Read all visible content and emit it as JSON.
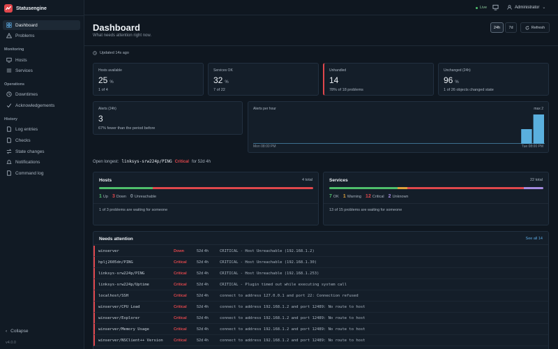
{
  "app": {
    "name": "Statusengine",
    "version": "v4.0.0"
  },
  "sidebar": {
    "top_items": [
      {
        "label": "Dashboard",
        "icon": "grid-icon",
        "active": true
      },
      {
        "label": "Problems",
        "icon": "warning-icon",
        "active": false
      }
    ],
    "sections": [
      {
        "title": "Monitoring",
        "items": [
          {
            "label": "Hosts",
            "icon": "monitor-icon"
          },
          {
            "label": "Services",
            "icon": "list-icon"
          }
        ]
      },
      {
        "title": "Operations",
        "items": [
          {
            "label": "Downtimes",
            "icon": "clock-icon"
          },
          {
            "label": "Acknowledgements",
            "icon": "check-icon"
          }
        ]
      },
      {
        "title": "History",
        "items": [
          {
            "label": "Log entries",
            "icon": "document-icon"
          },
          {
            "label": "Checks",
            "icon": "document-icon"
          },
          {
            "label": "State changes",
            "icon": "swap-icon"
          },
          {
            "label": "Notifications",
            "icon": "bell-icon"
          },
          {
            "label": "Command log",
            "icon": "document-icon"
          }
        ]
      }
    ],
    "collapse_label": "Collapse"
  },
  "topbar": {
    "live_label": "Live",
    "user_label": "Administrator"
  },
  "header": {
    "title": "Dashboard",
    "subtitle": "What needs attention right now.",
    "ranges": [
      "24h",
      "7d"
    ],
    "selected_range": "24h",
    "refresh_label": "Refresh",
    "updated": "Updated 14s ago"
  },
  "stats": [
    {
      "label": "Hosts available",
      "value": "25",
      "unit": "%",
      "sub": "1 of 4"
    },
    {
      "label": "Services OK",
      "value": "32",
      "unit": "%",
      "sub": "7 of 22"
    },
    {
      "label": "Unhandled",
      "value": "14",
      "unit": "",
      "sub": "78% of 18 problems"
    },
    {
      "label": "Unchanged (24h)",
      "value": "96",
      "unit": "%",
      "sub": "1 of 26 objects changed state"
    }
  ],
  "alerts": {
    "label": "Alerts (24h)",
    "value": "3",
    "sub": "67% fewer than the period before"
  },
  "chart_data": {
    "type": "bar",
    "title": "Alerts per hour",
    "max_label": "max 2",
    "x_start_label": "Mon 08:00 PM",
    "x_end_label": "Tue 08:00 PM",
    "values": [
      0,
      0,
      0,
      0,
      0,
      0,
      0,
      0,
      0,
      0,
      0,
      0,
      0,
      0,
      0,
      0,
      0,
      0,
      0,
      0,
      0,
      0,
      1,
      2
    ],
    "ylim": [
      0,
      2
    ],
    "colors": {
      "bar": "#5ab0de",
      "baseline": "#3d6f8f"
    }
  },
  "open_longest": {
    "label": "Open longest:",
    "target": "linksys-srw224p/PING",
    "state": "Critical",
    "duration": "for 52d 4h"
  },
  "hosts_panel": {
    "title": "Hosts",
    "total": "4 total",
    "segments": [
      {
        "name": "Up",
        "count": 1,
        "color": "#4fbf6c"
      },
      {
        "name": "Down",
        "count": 3,
        "color": "#e0474c"
      },
      {
        "name": "Unreachable",
        "count": 0,
        "color": "#8a96a3"
      }
    ],
    "note": "1 of 3 problems are waiting for someone"
  },
  "services_panel": {
    "title": "Services",
    "total": "22 total",
    "segments": [
      {
        "name": "OK",
        "count": 7,
        "color": "#4fbf6c"
      },
      {
        "name": "Warning",
        "count": 1,
        "color": "#e0a13a"
      },
      {
        "name": "Critical",
        "count": 12,
        "color": "#e0474c"
      },
      {
        "name": "Unknown",
        "count": 2,
        "color": "#a58be0"
      }
    ],
    "note": "13 of 15 problems are waiting for someone"
  },
  "attention": {
    "title": "Needs attention",
    "see_all": "See all 14",
    "rows": [
      {
        "name": "winserver",
        "state": "Down",
        "duration": "52d 4h",
        "output": "CRITICAL - Host Unreachable (192.168.1.2)"
      },
      {
        "name": "hplj2605dn/PING",
        "state": "Critical",
        "duration": "52d 4h",
        "output": "CRITICAL - Host Unreachable (192.168.1.30)"
      },
      {
        "name": "linksys-srw224p/PING",
        "state": "Critical",
        "duration": "52d 4h",
        "output": "CRITICAL - Host Unreachable (192.168.1.253)"
      },
      {
        "name": "linksys-srw224p/Uptime",
        "state": "Critical",
        "duration": "52d 4h",
        "output": "CRITICAL - Plugin timed out while executing system call"
      },
      {
        "name": "localhost/SSH",
        "state": "Critical",
        "duration": "52d 4h",
        "output": "connect to address 127.0.0.1 and port 22: Connection refused"
      },
      {
        "name": "winserver/CPU Load",
        "state": "Critical",
        "duration": "52d 4h",
        "output": "connect to address 192.168.1.2 and port 12489: No route to host"
      },
      {
        "name": "winserver/Explorer",
        "state": "Critical",
        "duration": "52d 4h",
        "output": "connect to address 192.168.1.2 and port 12489: No route to host"
      },
      {
        "name": "winserver/Memory Usage",
        "state": "Critical",
        "duration": "52d 4h",
        "output": "connect to address 192.168.1.2 and port 12489: No route to host"
      },
      {
        "name": "winserver/NSClient++ Version",
        "state": "Critical",
        "duration": "52d 4h",
        "output": "connect to address 192.168.1.2 and port 12489: No route to host"
      }
    ]
  }
}
